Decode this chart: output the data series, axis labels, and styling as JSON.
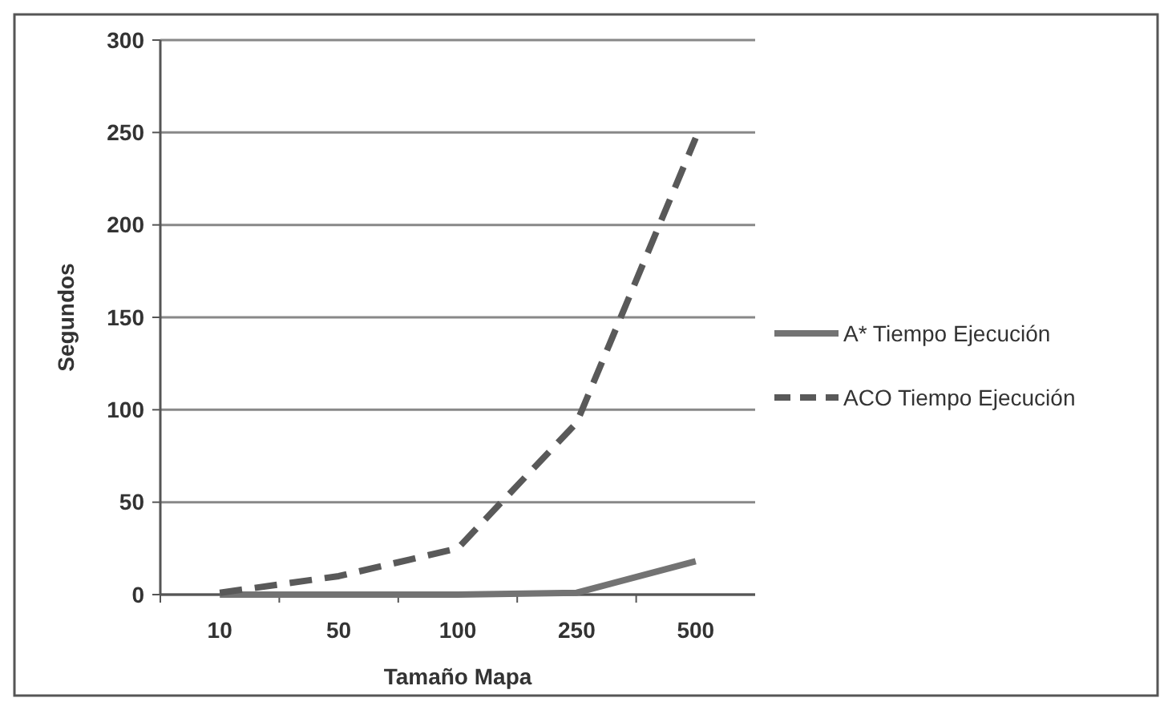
{
  "chart_data": {
    "type": "line",
    "xlabel": "Tamaño Mapa",
    "ylabel": "Segundos",
    "categories": [
      "10",
      "50",
      "100",
      "250",
      "500"
    ],
    "series": [
      {
        "name": "A* Tiempo Ejecución",
        "color": "#737373",
        "values": [
          0,
          0,
          0,
          1,
          18
        ],
        "line_style": "solid"
      },
      {
        "name": "ACO Tiempo Ejecución",
        "color": "#595959",
        "values": [
          1,
          10,
          25,
          93,
          247
        ],
        "line_style": "dashed"
      }
    ],
    "ylim": [
      0,
      300
    ],
    "yticks": [
      0,
      50,
      100,
      150,
      200,
      250,
      300
    ],
    "grid": "y",
    "legend": "right",
    "marker": "none"
  }
}
